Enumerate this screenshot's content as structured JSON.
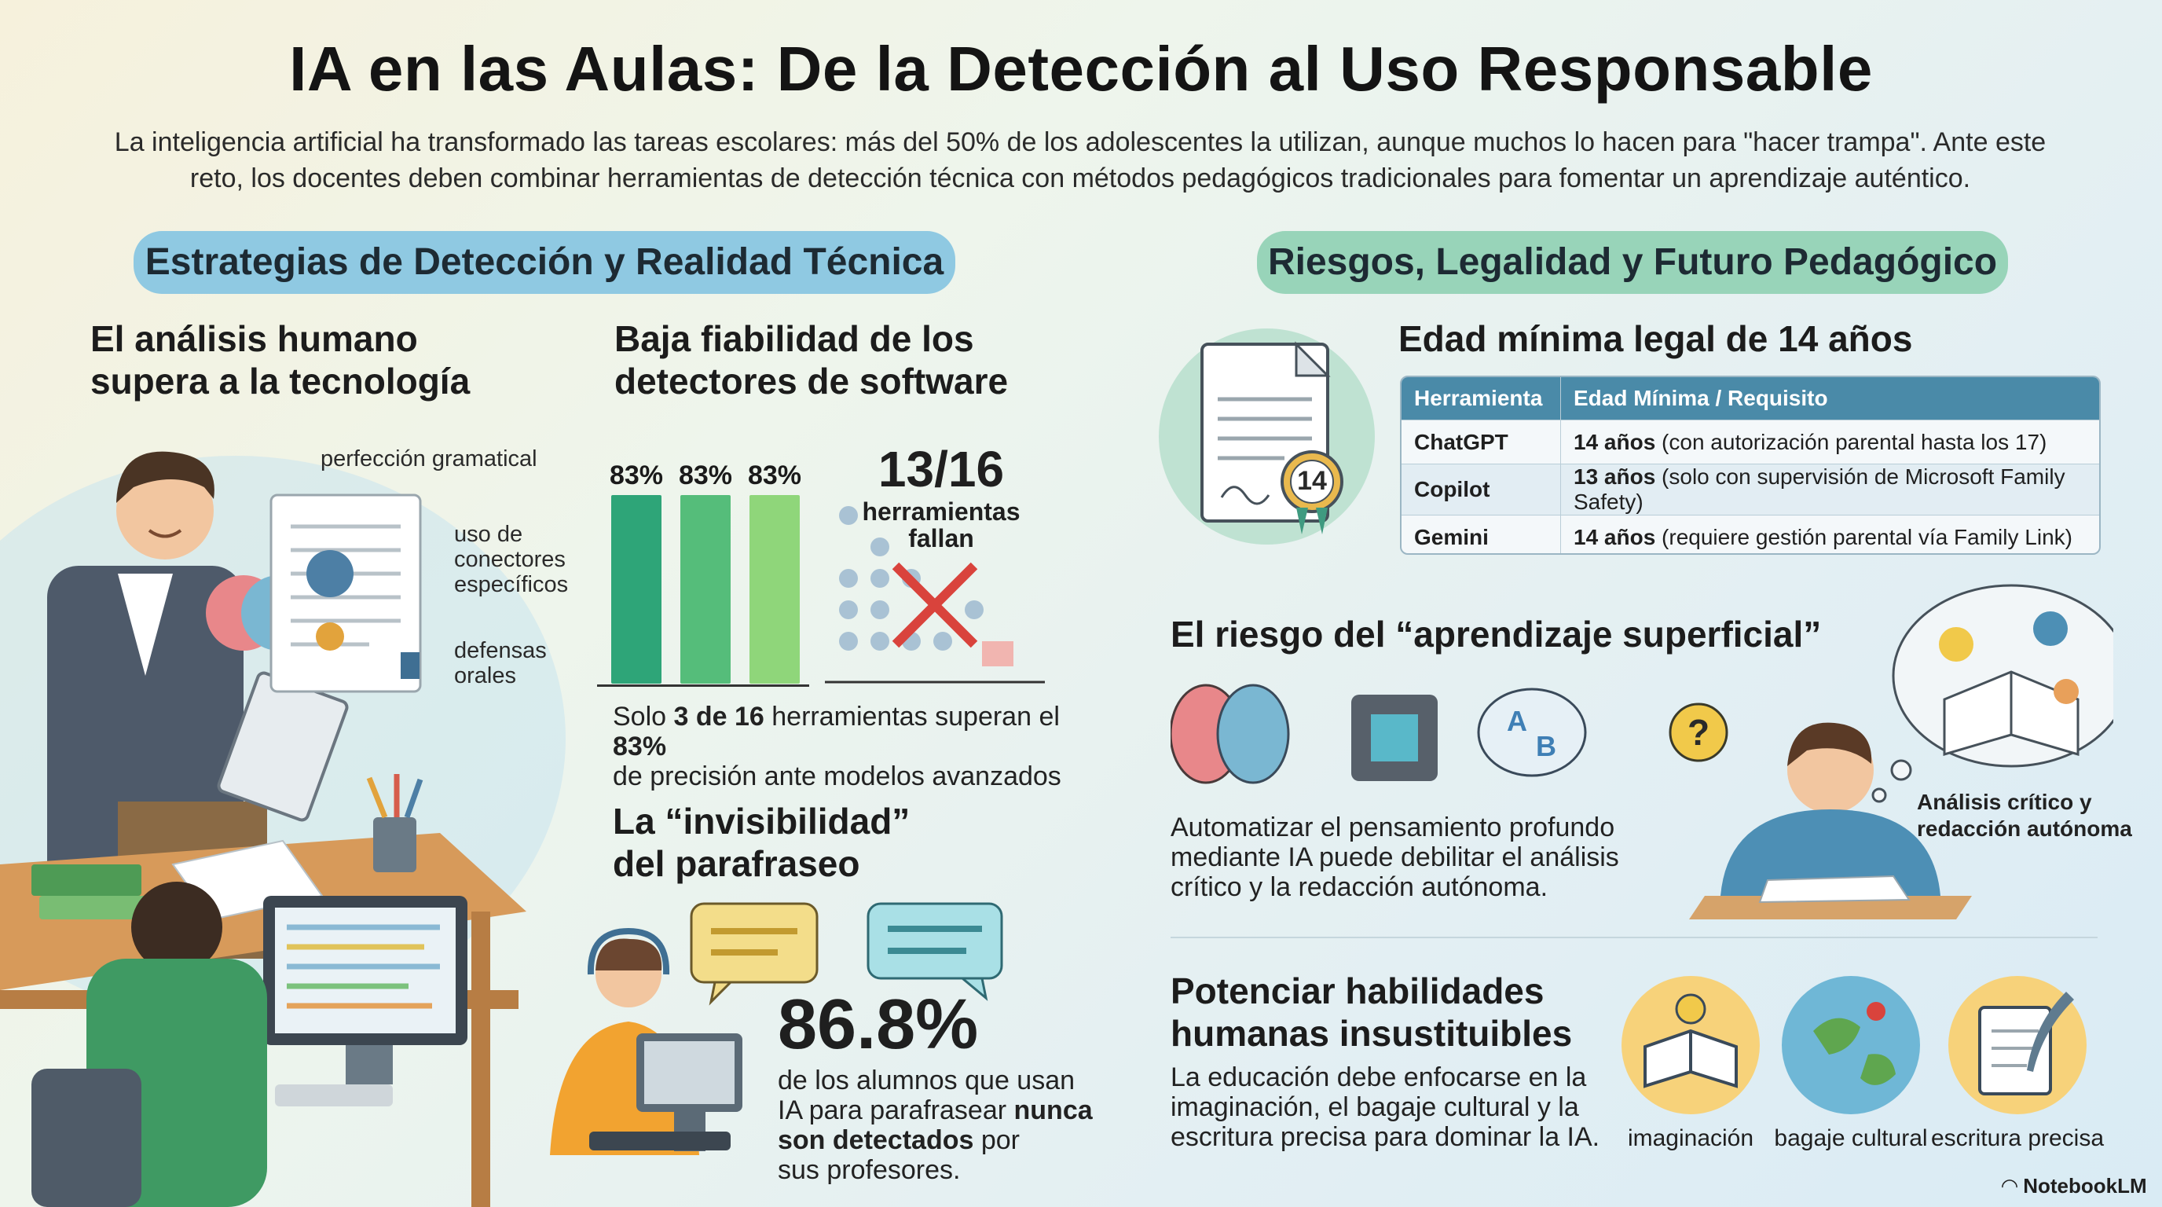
{
  "title": "IA en las Aulas: De la Detección al Uso Responsable",
  "intro": "La inteligencia artificial ha transformado las tareas escolares: más del 50% de los adolescentes la utilizan, aunque muchos lo hacen para \"hacer trampa\". Ante este reto, los docentes deben combinar herramientas de detección técnica con métodos pedagógicos tradicionales para fomentar un aprendizaje auténtico.",
  "left_section": {
    "pill": "Estrategias de Detección y Realidad Técnica",
    "human": {
      "heading_line1": "El análisis humano",
      "heading_line2": "supera a la tecnología",
      "label_grammar": "perfección gramatical",
      "label_connectors_1": "uso de",
      "label_connectors_2": "conectores",
      "label_connectors_3": "específicos",
      "label_oral_1": "defensas",
      "label_oral_2": "orales"
    },
    "detectors": {
      "heading_line1": "Baja fiabilidad de los",
      "heading_line2": "detectores de software",
      "bars": [
        "83%",
        "83%",
        "83%"
      ],
      "bar_colors": [
        "#2ea578",
        "#55bd7a",
        "#8fd67a"
      ],
      "big_stat": "13/16",
      "big_stat_label_1": "herramientas",
      "big_stat_label_2": "fallan",
      "caption_pre": "Solo ",
      "caption_bold1": "3 de 16",
      "caption_mid": " herramientas superan el ",
      "caption_bold2": "83%",
      "caption_line2": "de precisión ante modelos avanzados"
    },
    "paraphrase": {
      "heading_line1": "La “invisibilidad”",
      "heading_line2": "del parafraseo",
      "stat": "86.8%",
      "text_line1": "de los alumnos que usan",
      "text_line2_pre": "IA para parafrasear ",
      "text_line2_bold": "nunca",
      "text_line3_bold": "son detectados",
      "text_line3_post": " por",
      "text_line4": "sus profesores."
    }
  },
  "right_section": {
    "pill": "Riesgos, Legalidad y Futuro Pedagógico",
    "legal": {
      "heading": "Edad mínima legal de 14 años",
      "badge": "14",
      "columns": [
        "Herramienta",
        "Edad Mínima / Requisito"
      ],
      "rows": [
        {
          "tool": "ChatGPT",
          "age": "14 años",
          "note": " (con autorización parental hasta los 17)"
        },
        {
          "tool": "Copilot",
          "age": "13 años",
          "note": " (solo con supervisión de Microsoft Family Safety)"
        },
        {
          "tool": "Gemini",
          "age": "14 años",
          "note": " (requiere gestión parental vía Family Link)"
        }
      ]
    },
    "superficial": {
      "heading": "El riesgo del “aprendizaje superficial”",
      "text_line1": "Automatizar el pensamiento profundo",
      "text_line2": "mediante IA puede debilitar el análisis",
      "text_line3": "crítico y la redacción autónoma.",
      "side_label_1": "Análisis crítico y",
      "side_label_2": "redacción autónoma"
    },
    "skills": {
      "heading_line1": "Potenciar habilidades",
      "heading_line2": "humanas insustituibles",
      "text_line1": "La educación debe enfocarse en la",
      "text_line2": "imaginación, el bagaje cultural y la",
      "text_line3": "escritura precisa para dominar la IA.",
      "icons": [
        "imaginación",
        "bagaje cultural",
        "escritura precisa"
      ]
    }
  },
  "footer": {
    "brand": "NotebookLM"
  }
}
